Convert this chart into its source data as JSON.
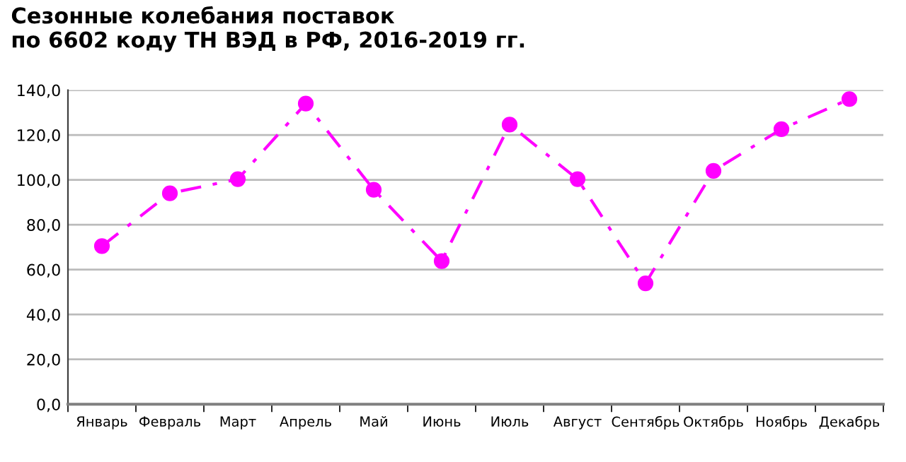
{
  "chart_data": {
    "type": "line",
    "title": "Сезонные колебания поставок\nпо 6602 коду ТН ВЭД в РФ, 2016-2019 гг.",
    "categories": [
      "Январь",
      "Февраль",
      "Март",
      "Апрель",
      "Май",
      "Июнь",
      "Июль",
      "Август",
      "Сентябрь",
      "Октябрь",
      "Ноябрь",
      "Декабрь"
    ],
    "series": [
      {
        "color": "#ff00ff",
        "values": [
          70.5,
          94,
          100.3,
          134,
          95.6,
          63.8,
          124.6,
          100.3,
          53.9,
          104,
          122.6,
          136
        ]
      }
    ],
    "ylim": [
      0,
      140
    ],
    "yticks": [
      {
        "value": 0,
        "label": "0,0"
      },
      {
        "value": 20,
        "label": "20,0"
      },
      {
        "value": 40,
        "label": "40,0"
      },
      {
        "value": 60,
        "label": "60,0"
      },
      {
        "value": 80,
        "label": "80,0"
      },
      {
        "value": 100,
        "label": "100,0"
      },
      {
        "value": 120,
        "label": "120,0"
      },
      {
        "value": 140,
        "label": "140,0"
      }
    ],
    "grid": "y",
    "marker": "circle",
    "line_style": "dashed",
    "legend": false
  }
}
